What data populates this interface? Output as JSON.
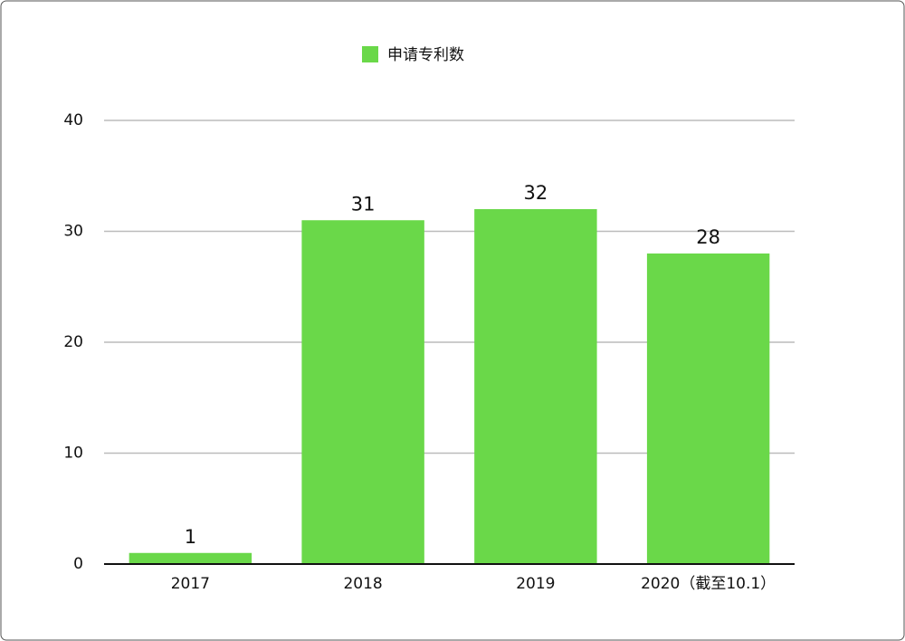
{
  "chart_data": {
    "type": "bar",
    "categories": [
      "2017",
      "2018",
      "2019",
      "2020（截至10.1）"
    ],
    "series": [
      {
        "name": "申请专利数",
        "color": "#6ad849",
        "values": [
          1,
          31,
          32,
          28
        ]
      }
    ],
    "ylim": [
      0,
      40
    ],
    "yticks": [
      0,
      10,
      20,
      30,
      40
    ],
    "grid": true,
    "legend": "top"
  }
}
